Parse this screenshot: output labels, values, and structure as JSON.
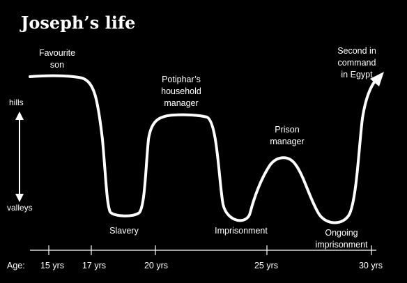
{
  "title": "Joseph’s life",
  "axis": {
    "hills_label": "hills",
    "valleys_label": "valleys",
    "age_label": "Age:"
  },
  "ticks": [
    "15 yrs",
    "17 yrs",
    "20 yrs",
    "25 yrs",
    "30 yrs"
  ],
  "events": [
    {
      "key": "favourite-son",
      "lines": [
        "Favourite",
        "son"
      ]
    },
    {
      "key": "slavery",
      "lines": [
        "Slavery"
      ]
    },
    {
      "key": "potiphar",
      "lines": [
        "Potiphar’s",
        "household",
        "manager"
      ]
    },
    {
      "key": "imprisonment",
      "lines": [
        "Imprisonment"
      ]
    },
    {
      "key": "prison-manager",
      "lines": [
        "Prison",
        "manager"
      ]
    },
    {
      "key": "ongoing-imprisonment",
      "lines": [
        "Ongoing",
        "imprisonment"
      ]
    },
    {
      "key": "second-in-command",
      "lines": [
        "Second in",
        "command",
        "in Egypt"
      ]
    }
  ],
  "colors": {
    "background": "#000000",
    "foreground": "#ffffff"
  }
}
